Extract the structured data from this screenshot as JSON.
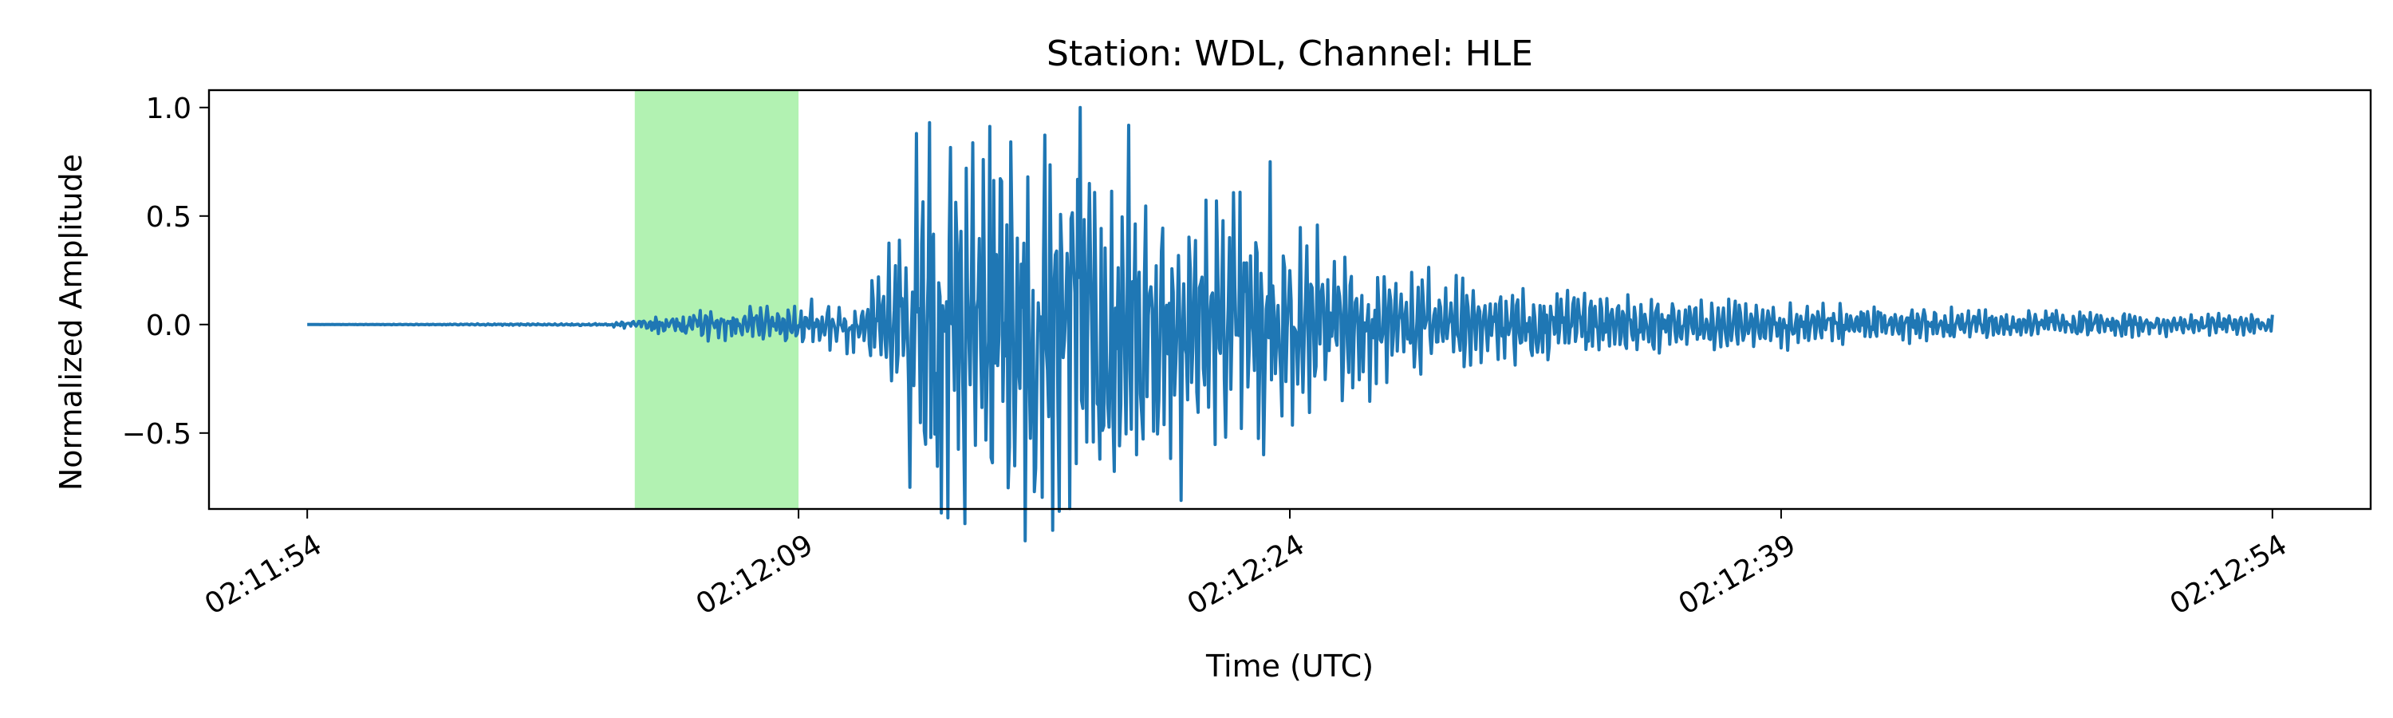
{
  "chart_data": {
    "type": "line",
    "title": "Station: WDL, Channel: HLE",
    "xlabel": "Time (UTC)",
    "ylabel": "Normalized Amplitude",
    "x_tick_labels": [
      "02:11:54",
      "02:12:09",
      "02:12:24",
      "02:12:39",
      "02:12:54"
    ],
    "y_tick_labels": [
      "1.0",
      "0.5",
      "0.0",
      "−0.5"
    ],
    "y_ticks": [
      1.0,
      0.5,
      0.0,
      -0.5
    ],
    "xlim": [
      "02:11:51",
      "02:12:57"
    ],
    "ylim": [
      -0.85,
      1.08
    ],
    "highlight": {
      "start": "02:12:04",
      "end": "02:12:09",
      "color": "#b2f2b2"
    },
    "grid": false,
    "series": [
      {
        "color": "#1f77b4",
        "start": "02:11:54",
        "end": "02:12:54",
        "envelope": [
          {
            "t": "02:11:54",
            "amp": 0.0
          },
          {
            "t": "02:12:03",
            "amp": 0.005
          },
          {
            "t": "02:12:04",
            "amp": 0.02
          },
          {
            "t": "02:12:06",
            "amp": 0.06
          },
          {
            "t": "02:12:09",
            "amp": 0.09
          },
          {
            "t": "02:12:11",
            "amp": 0.12
          },
          {
            "t": "02:12:12",
            "amp": 0.35
          },
          {
            "t": "02:12:13",
            "amp": 0.78
          },
          {
            "t": "02:12:16",
            "amp": 0.85
          },
          {
            "t": "02:12:18",
            "amp": 0.82
          },
          {
            "t": "02:12:21",
            "amp": 0.6
          },
          {
            "t": "02:12:22",
            "amp": 0.55
          },
          {
            "t": "02:12:24",
            "amp": 0.4
          },
          {
            "t": "02:12:27",
            "amp": 0.25
          },
          {
            "t": "02:12:31",
            "amp": 0.16
          },
          {
            "t": "02:12:36",
            "amp": 0.12
          },
          {
            "t": "02:12:42",
            "amp": 0.08
          },
          {
            "t": "02:12:54",
            "amp": 0.04
          }
        ],
        "peaks": [
          {
            "t": "02:12:12.60",
            "v": 0.88
          },
          {
            "t": "02:12:12.40",
            "v": -0.75
          },
          {
            "t": "02:12:13.00",
            "v": 0.93
          },
          {
            "t": "02:12:14.10",
            "v": 0.72
          },
          {
            "t": "02:12:15.20",
            "v": 0.66
          },
          {
            "t": "02:12:16.20",
            "v": 0.72
          },
          {
            "t": "02:12:16.20",
            "v": -0.77
          },
          {
            "t": "02:12:17.60",
            "v": 1.0
          },
          {
            "t": "02:12:17.90",
            "v": 0.65
          },
          {
            "t": "02:12:18.20",
            "v": -0.62
          },
          {
            "t": "02:12:19.30",
            "v": -0.6
          },
          {
            "t": "02:12:23.40",
            "v": 0.75
          },
          {
            "t": "02:12:23.20",
            "v": -0.6
          }
        ]
      }
    ]
  }
}
